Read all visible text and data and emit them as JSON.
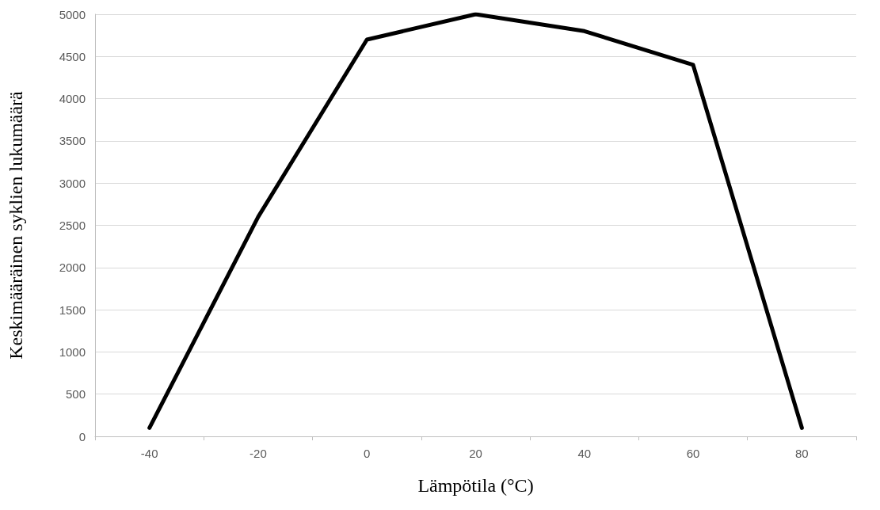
{
  "chart_data": {
    "type": "line",
    "xlabel": "Lämpötila (°C)",
    "ylabel": "Keskimääräinen syklien lukumäärä",
    "categories": [
      "-40",
      "-20",
      "0",
      "20",
      "40",
      "60",
      "80"
    ],
    "series": [
      {
        "color": "#000000",
        "values": [
          100,
          2600,
          4700,
          5000,
          4800,
          4400,
          100
        ]
      }
    ],
    "ylim": [
      0,
      5000
    ],
    "yticks": [
      0,
      500,
      1000,
      1500,
      2000,
      2500,
      3000,
      3500,
      4000,
      4500,
      5000
    ],
    "grid": "y",
    "marker": "none",
    "line_style": "solid"
  }
}
